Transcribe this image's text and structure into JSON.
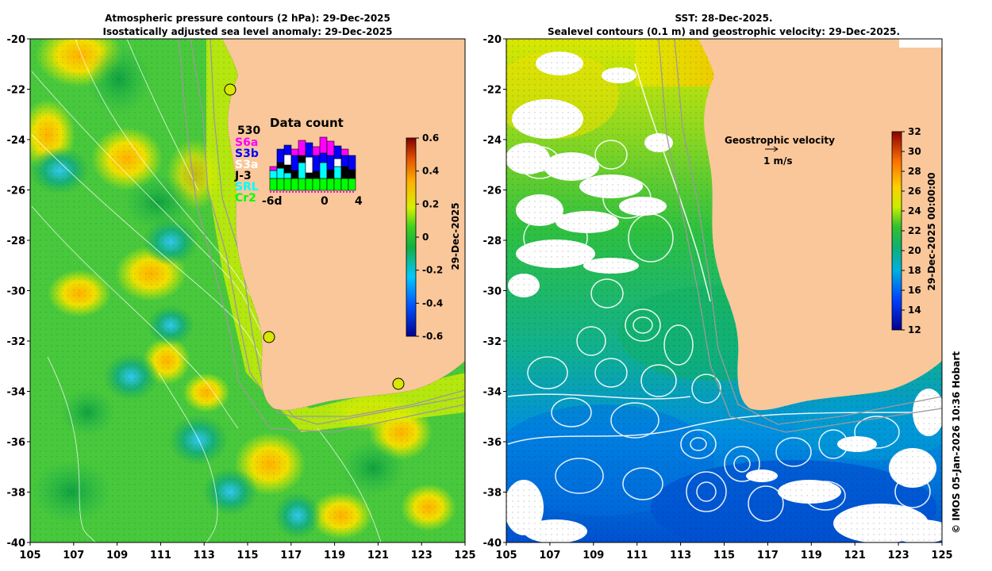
{
  "left_panel": {
    "title_line1": "Atmospheric pressure contours (2 hPa): 29-Dec-2025",
    "title_line2": "Isostatically adjusted sea level anomaly: 29-Dec-2025",
    "colorbar": {
      "ticks": [
        "0.6",
        "0.4",
        "0.2",
        "0",
        "-0.2",
        "-0.4",
        "-0.6"
      ],
      "label": "29-Dec-2025"
    },
    "data_count": {
      "title": "Data count",
      "max": "530",
      "satellites": [
        {
          "name": "S6a",
          "color": "#ff00ff"
        },
        {
          "name": "S3b",
          "color": "#0000ff"
        },
        {
          "name": "S3a",
          "color": "#ffffff"
        },
        {
          "name": "J-3",
          "color": "#000000"
        },
        {
          "name": "SRL",
          "color": "#00ffff"
        },
        {
          "name": "Cr2",
          "color": "#00ff00"
        }
      ],
      "x_ticks": [
        "-6d",
        "0",
        "4"
      ]
    },
    "markers": [
      "site-marker",
      "site-marker",
      "site-marker"
    ]
  },
  "right_panel": {
    "title_line1": "SST: 28-Dec-2025.",
    "title_line2": "Sealevel contours (0.1 m) and geostrophic velocity: 29-Dec-2025.",
    "colorbar": {
      "ticks": [
        "32",
        "30",
        "28",
        "26",
        "24",
        "22",
        "20",
        "18",
        "16",
        "14",
        "12"
      ],
      "label": "29-Dec-2025 00:00:00"
    },
    "velocity_legend": {
      "title": "Geostrophic velocity",
      "scale": "1 m/s"
    }
  },
  "axes": {
    "y_ticks": [
      "-20",
      "-22",
      "-24",
      "-26",
      "-28",
      "-30",
      "-32",
      "-34",
      "-36",
      "-38",
      "-40"
    ],
    "x_ticks": [
      "105",
      "107",
      "109",
      "111",
      "113",
      "115",
      "117",
      "119",
      "121",
      "123",
      "125"
    ]
  },
  "credit": "© IMOS 05-Jan-2026 10:36 Hobart",
  "colors": {
    "land": "#f9c79a",
    "ocean_green": "#33c84a",
    "anomaly_yellow": "#e8f200",
    "contour_grey": "#9a9a9a"
  }
}
